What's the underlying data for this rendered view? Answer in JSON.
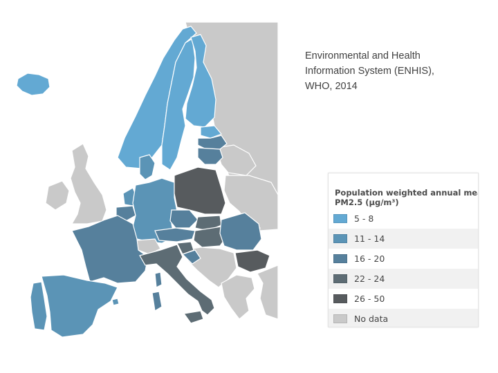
{
  "source": {
    "lines": [
      "Environmental and Health",
      "Information System (ENHIS),",
      "WHO, 2014"
    ]
  },
  "legend": {
    "title_line1": "Population weighted annual mean",
    "title_line2": "PM2.5 (µg/m³)",
    "items": [
      {
        "label": "5 - 8",
        "color": "#63a9d3"
      },
      {
        "label": "11 - 14",
        "color": "#5b94b6"
      },
      {
        "label": "16 - 20",
        "color": "#56809c"
      },
      {
        "label": "22 - 24",
        "color": "#5d6c74"
      },
      {
        "label": "26 - 50",
        "color": "#575b5e"
      },
      {
        "label": "No data",
        "color": "#c9c9c9"
      }
    ]
  },
  "map": {
    "colors": {
      "no_data": "#c9c9c9",
      "sea": "#ffffff"
    }
  }
}
